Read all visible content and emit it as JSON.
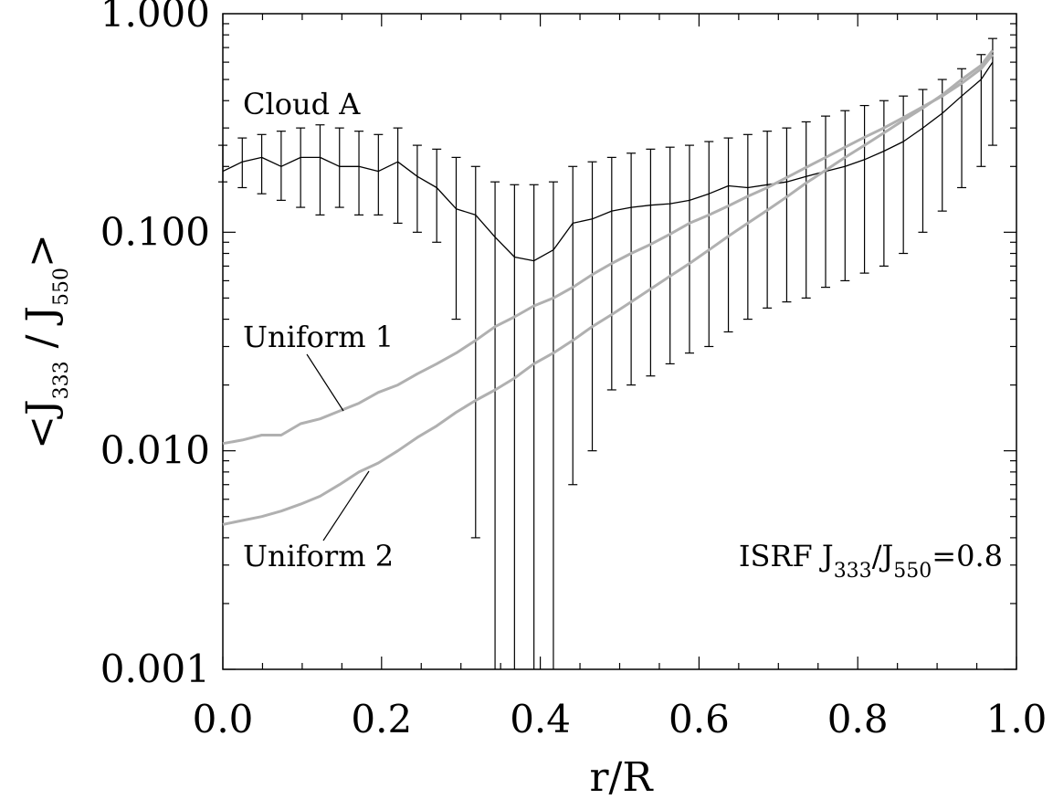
{
  "chart_data": {
    "type": "line",
    "xlabel": "r/R",
    "ylabel": {
      "prefix": "<J",
      "num_sub": "333",
      "sep": " / J",
      "den_sub": "550",
      "suffix": ">"
    },
    "xlim": [
      0.0,
      1.0
    ],
    "ylim": [
      0.001,
      1.0
    ],
    "yscale": "log",
    "xticks": [
      "0.0",
      "0.2",
      "0.4",
      "0.6",
      "0.8",
      "1.0"
    ],
    "yticks": [
      "0.001",
      "0.010",
      "0.100",
      "1.000"
    ],
    "grid": false,
    "annotations": {
      "cloud": "Cloud A",
      "uniform1": "Uniform 1",
      "uniform2": "Uniform 2",
      "isrf": {
        "prefix": "ISRF J",
        "sub1": "333",
        "mid": "/J",
        "sub2": "550",
        "suffix": "=0.8"
      }
    },
    "series": [
      {
        "name": "Cloud A",
        "color": "#000000",
        "x": [
          0.0,
          0.0245,
          0.049,
          0.0735,
          0.098,
          0.1225,
          0.147,
          0.1715,
          0.196,
          0.2205,
          0.245,
          0.2695,
          0.294,
          0.3185,
          0.343,
          0.3675,
          0.392,
          0.4165,
          0.441,
          0.4655,
          0.49,
          0.5145,
          0.539,
          0.5635,
          0.588,
          0.6125,
          0.637,
          0.6615,
          0.686,
          0.7105,
          0.735,
          0.7595,
          0.784,
          0.8085,
          0.833,
          0.8575,
          0.882,
          0.9065,
          0.931,
          0.9555,
          0.97
        ],
        "y": [
          0.19,
          0.21,
          0.22,
          0.2,
          0.22,
          0.22,
          0.2,
          0.2,
          0.19,
          0.21,
          0.18,
          0.16,
          0.128,
          0.12,
          0.095,
          0.077,
          0.074,
          0.083,
          0.11,
          0.115,
          0.125,
          0.13,
          0.133,
          0.135,
          0.14,
          0.15,
          0.163,
          0.16,
          0.165,
          0.17,
          0.18,
          0.19,
          0.2,
          0.215,
          0.235,
          0.26,
          0.3,
          0.35,
          0.42,
          0.5,
          0.6
        ],
        "yerr_lo": [
          0.17,
          0.16,
          0.15,
          0.14,
          0.13,
          0.12,
          0.13,
          0.12,
          0.12,
          0.11,
          0.1,
          0.09,
          0.04,
          0.004,
          0.001,
          0.001,
          0.001,
          0.001,
          0.007,
          0.01,
          0.019,
          0.02,
          0.022,
          0.025,
          0.028,
          0.03,
          0.035,
          0.04,
          0.045,
          0.048,
          0.05,
          0.056,
          0.06,
          0.065,
          0.07,
          0.08,
          0.1,
          0.125,
          0.16,
          0.2,
          0.25
        ],
        "yerr_hi": [
          0.25,
          0.27,
          0.28,
          0.29,
          0.3,
          0.31,
          0.3,
          0.29,
          0.28,
          0.3,
          0.25,
          0.24,
          0.22,
          0.2,
          0.17,
          0.165,
          0.165,
          0.17,
          0.2,
          0.21,
          0.22,
          0.23,
          0.24,
          0.245,
          0.25,
          0.26,
          0.27,
          0.28,
          0.29,
          0.3,
          0.32,
          0.34,
          0.36,
          0.38,
          0.4,
          0.42,
          0.45,
          0.5,
          0.56,
          0.65,
          0.77
        ]
      },
      {
        "name": "Uniform 1",
        "color": "#b0b0b0",
        "x": [
          0.0,
          0.0245,
          0.049,
          0.0735,
          0.098,
          0.1225,
          0.147,
          0.1715,
          0.196,
          0.2205,
          0.245,
          0.2695,
          0.294,
          0.3185,
          0.343,
          0.3675,
          0.392,
          0.4165,
          0.441,
          0.4655,
          0.49,
          0.5145,
          0.539,
          0.5635,
          0.588,
          0.6125,
          0.637,
          0.6615,
          0.686,
          0.7105,
          0.735,
          0.7595,
          0.784,
          0.8085,
          0.833,
          0.8575,
          0.882,
          0.9065,
          0.931,
          0.9555,
          0.97
        ],
        "y": [
          0.0108,
          0.0112,
          0.0118,
          0.0118,
          0.0133,
          0.014,
          0.0152,
          0.0165,
          0.0185,
          0.02,
          0.0225,
          0.025,
          0.028,
          0.032,
          0.037,
          0.041,
          0.046,
          0.05,
          0.056,
          0.064,
          0.072,
          0.08,
          0.088,
          0.098,
          0.11,
          0.12,
          0.132,
          0.146,
          0.16,
          0.178,
          0.198,
          0.22,
          0.245,
          0.272,
          0.3,
          0.335,
          0.375,
          0.42,
          0.48,
          0.56,
          0.65
        ]
      },
      {
        "name": "Uniform 2",
        "color": "#b0b0b0",
        "x": [
          0.0,
          0.0245,
          0.049,
          0.0735,
          0.098,
          0.1225,
          0.147,
          0.1715,
          0.196,
          0.2205,
          0.245,
          0.2695,
          0.294,
          0.3185,
          0.343,
          0.3675,
          0.392,
          0.4165,
          0.441,
          0.4655,
          0.49,
          0.5145,
          0.539,
          0.5635,
          0.588,
          0.6125,
          0.637,
          0.6615,
          0.686,
          0.7105,
          0.735,
          0.7595,
          0.784,
          0.8085,
          0.833,
          0.8575,
          0.882,
          0.9065,
          0.931,
          0.9555,
          0.97
        ],
        "y": [
          0.0046,
          0.0048,
          0.005,
          0.0053,
          0.0057,
          0.0062,
          0.007,
          0.008,
          0.0088,
          0.01,
          0.0115,
          0.013,
          0.015,
          0.017,
          0.019,
          0.0215,
          0.025,
          0.028,
          0.032,
          0.037,
          0.042,
          0.048,
          0.055,
          0.063,
          0.072,
          0.083,
          0.096,
          0.11,
          0.126,
          0.145,
          0.168,
          0.192,
          0.22,
          0.25,
          0.285,
          0.325,
          0.37,
          0.425,
          0.5,
          0.58,
          0.68
        ]
      }
    ]
  }
}
